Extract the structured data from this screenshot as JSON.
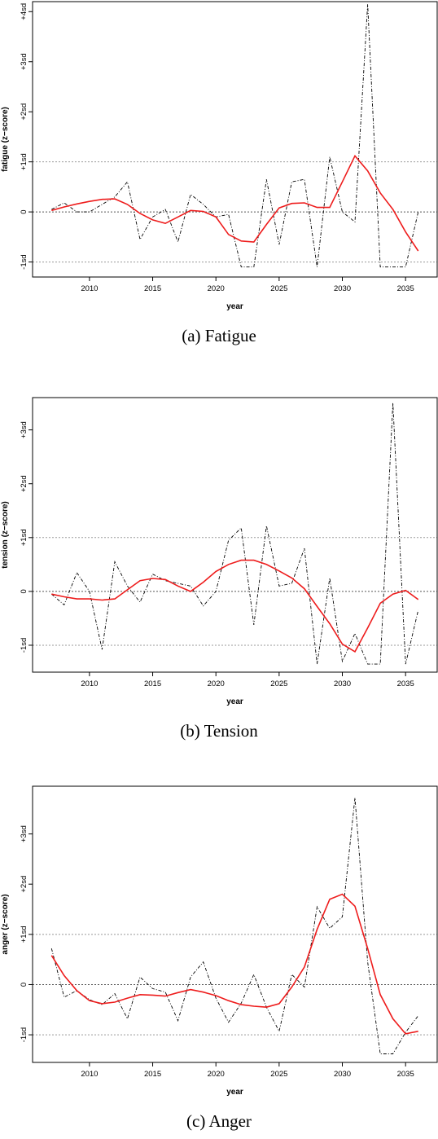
{
  "chart_data": [
    {
      "type": "line",
      "panel_id": "fatigue",
      "caption": "(a) Fatigue",
      "xlabel": "year",
      "ylabel": "fatigue (z−score)",
      "xlim": [
        2005.5,
        2037.5
      ],
      "ylim": [
        -1.3,
        4.2
      ],
      "xticks": [
        2010,
        2015,
        2020,
        2025,
        2030,
        2035
      ],
      "yticks": [
        {
          "v": -1,
          "label": "-1sd"
        },
        {
          "v": 0,
          "label": "0"
        },
        {
          "v": 1,
          "label": "+1sd"
        },
        {
          "v": 2,
          "label": "+2sd"
        },
        {
          "v": 3,
          "label": "+3sd"
        },
        {
          "v": 4,
          "label": "+4sd"
        }
      ],
      "reflines": [
        -1,
        0,
        1
      ],
      "x": [
        2007,
        2008,
        2009,
        2010,
        2011,
        2012,
        2013,
        2014,
        2015,
        2016,
        2017,
        2018,
        2019,
        2020,
        2021,
        2022,
        2023,
        2024,
        2025,
        2026,
        2027,
        2028,
        2029,
        2030,
        2031,
        2032,
        2033,
        2034,
        2035,
        2036
      ],
      "series": [
        {
          "style": "dashed-black",
          "values": [
            0.05,
            0.18,
            0.0,
            0.0,
            0.15,
            0.3,
            0.6,
            -0.55,
            -0.1,
            0.05,
            -0.6,
            0.35,
            0.15,
            -0.1,
            -0.05,
            -1.1,
            -1.1,
            0.65,
            -0.65,
            0.6,
            0.65,
            -1.1,
            1.1,
            0.0,
            -0.2,
            4.15,
            -1.1,
            -1.1,
            -1.1,
            0.0
          ]
        },
        {
          "style": "smooth-red",
          "values": [
            0.03,
            0.1,
            0.16,
            0.21,
            0.25,
            0.26,
            0.15,
            -0.03,
            -0.16,
            -0.23,
            -0.1,
            0.03,
            0.01,
            -0.1,
            -0.45,
            -0.58,
            -0.6,
            -0.25,
            0.08,
            0.17,
            0.18,
            0.09,
            0.09,
            0.6,
            1.12,
            0.82,
            0.38,
            0.05,
            -0.4,
            -0.78
          ]
        }
      ]
    },
    {
      "type": "line",
      "panel_id": "tension",
      "caption": "(b) Tension",
      "xlabel": "year",
      "ylabel": "tension (z−score)",
      "xlim": [
        2005.5,
        2037.5
      ],
      "ylim": [
        -1.5,
        3.6
      ],
      "xticks": [
        2010,
        2015,
        2020,
        2025,
        2030,
        2035
      ],
      "yticks": [
        {
          "v": -1,
          "label": "-1sd"
        },
        {
          "v": 0,
          "label": "0"
        },
        {
          "v": 1,
          "label": "+1sd"
        },
        {
          "v": 2,
          "label": "+2sd"
        },
        {
          "v": 3,
          "label": "+3sd"
        }
      ],
      "reflines": [
        -1,
        0,
        1
      ],
      "x": [
        2007,
        2008,
        2009,
        2010,
        2011,
        2012,
        2013,
        2014,
        2015,
        2016,
        2017,
        2018,
        2019,
        2020,
        2021,
        2022,
        2023,
        2024,
        2025,
        2026,
        2027,
        2028,
        2029,
        2030,
        2031,
        2032,
        2033,
        2034,
        2035,
        2036
      ],
      "series": [
        {
          "style": "dashed-black",
          "values": [
            -0.05,
            -0.25,
            0.35,
            0.0,
            -1.08,
            0.55,
            0.1,
            -0.2,
            0.32,
            0.2,
            0.15,
            0.1,
            -0.27,
            0.0,
            0.95,
            1.18,
            -0.62,
            1.22,
            0.1,
            0.15,
            0.8,
            -1.35,
            0.25,
            -1.3,
            -0.78,
            -1.35,
            -1.35,
            3.5,
            -1.35,
            -0.35
          ]
        },
        {
          "style": "smooth-red",
          "values": [
            -0.05,
            -0.1,
            -0.14,
            -0.14,
            -0.16,
            -0.14,
            0.03,
            0.2,
            0.24,
            0.22,
            0.1,
            0.0,
            0.17,
            0.37,
            0.5,
            0.58,
            0.58,
            0.5,
            0.38,
            0.25,
            0.05,
            -0.28,
            -0.6,
            -0.98,
            -1.12,
            -0.68,
            -0.22,
            -0.05,
            0.02,
            -0.15
          ]
        }
      ]
    },
    {
      "type": "line",
      "panel_id": "anger",
      "caption": "(c) Anger",
      "xlabel": "year",
      "ylabel": "anger (z−score)",
      "xlim": [
        2005.5,
        2037.5
      ],
      "ylim": [
        -1.55,
        3.95
      ],
      "xticks": [
        2010,
        2015,
        2020,
        2025,
        2030,
        2035
      ],
      "yticks": [
        {
          "v": -1,
          "label": "-1sd"
        },
        {
          "v": 0,
          "label": "0"
        },
        {
          "v": 1,
          "label": "+1sd"
        },
        {
          "v": 2,
          "label": "+2sd"
        },
        {
          "v": 3,
          "label": "+3sd"
        }
      ],
      "reflines": [
        -1,
        0,
        1
      ],
      "x": [
        2007,
        2008,
        2009,
        2010,
        2011,
        2012,
        2013,
        2014,
        2015,
        2016,
        2017,
        2018,
        2019,
        2020,
        2021,
        2022,
        2023,
        2024,
        2025,
        2026,
        2027,
        2028,
        2029,
        2030,
        2031,
        2032,
        2033,
        2034,
        2035,
        2036
      ],
      "series": [
        {
          "style": "dashed-black",
          "values": [
            0.72,
            -0.25,
            -0.12,
            -0.3,
            -0.4,
            -0.18,
            -0.68,
            0.15,
            -0.08,
            -0.15,
            -0.72,
            0.15,
            0.45,
            -0.27,
            -0.75,
            -0.37,
            0.2,
            -0.45,
            -0.93,
            0.2,
            -0.05,
            1.55,
            1.12,
            1.35,
            3.72,
            0.45,
            -1.38,
            -1.38,
            -0.95,
            -0.62
          ]
        },
        {
          "style": "smooth-red",
          "values": [
            0.58,
            0.18,
            -0.12,
            -0.32,
            -0.38,
            -0.35,
            -0.27,
            -0.2,
            -0.21,
            -0.23,
            -0.16,
            -0.1,
            -0.15,
            -0.22,
            -0.32,
            -0.4,
            -0.43,
            -0.45,
            -0.38,
            -0.05,
            0.35,
            1.1,
            1.7,
            1.8,
            1.56,
            0.72,
            -0.2,
            -0.68,
            -0.98,
            -0.93
          ]
        }
      ]
    }
  ]
}
